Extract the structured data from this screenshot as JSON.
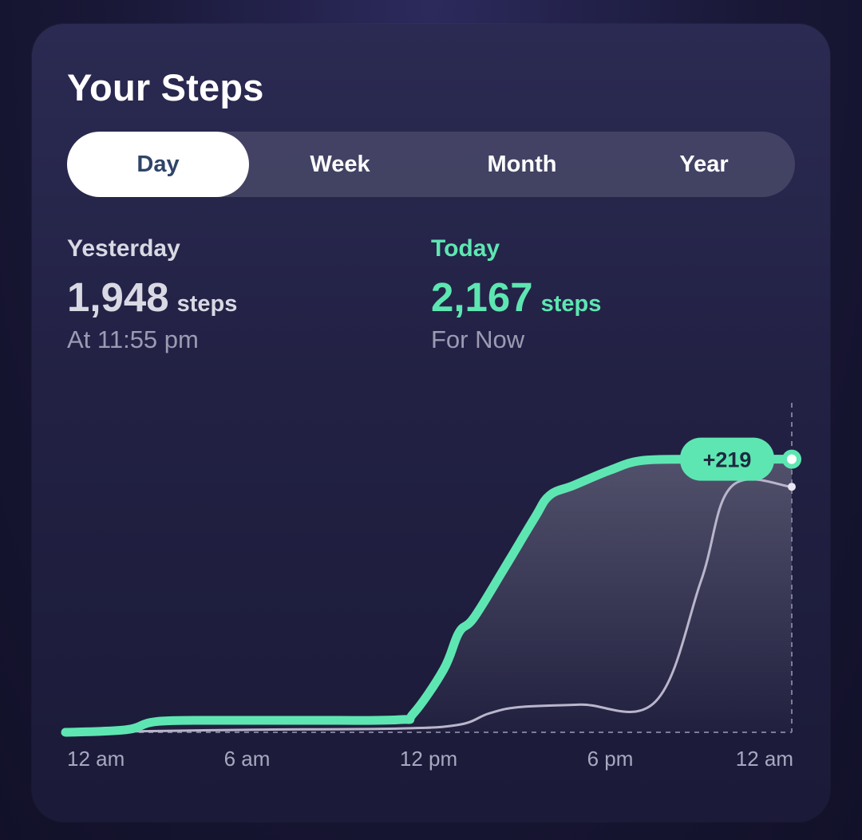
{
  "title": "Your Steps",
  "tabs": [
    {
      "label": "Day",
      "active": true
    },
    {
      "label": "Week",
      "active": false
    },
    {
      "label": "Month",
      "active": false
    },
    {
      "label": "Year",
      "active": false
    }
  ],
  "yesterday": {
    "label": "Yesterday",
    "steps": "1,948",
    "unit": "steps",
    "sub": "At 11:55 pm"
  },
  "today": {
    "label": "Today",
    "steps": "2,167",
    "unit": "steps",
    "sub": "For Now"
  },
  "colors": {
    "accent": "#5ee6b2",
    "yesterday_line": "#b9b6cc",
    "card": "#24234a",
    "active_tab_text": "#2f4468"
  },
  "chart_data": {
    "type": "line",
    "x_tick_labels": [
      "12 am",
      "6 am",
      "12 pm",
      "6 pm",
      "12 am"
    ],
    "x_unit": "hour of day",
    "x_range": [
      0,
      24
    ],
    "y_range": [
      0,
      2500
    ],
    "series": [
      {
        "name": "Today",
        "color": "#5ee6b2",
        "points": [
          [
            0,
            0
          ],
          [
            2,
            20
          ],
          [
            3,
            85
          ],
          [
            5,
            95
          ],
          [
            8,
            95
          ],
          [
            11,
            100
          ],
          [
            11.5,
            150
          ],
          [
            12.5,
            500
          ],
          [
            13,
            790
          ],
          [
            13.5,
            910
          ],
          [
            14.5,
            1300
          ],
          [
            15.5,
            1700
          ],
          [
            16,
            1880
          ],
          [
            16.8,
            1960
          ],
          [
            18,
            2080
          ],
          [
            19,
            2155
          ],
          [
            20.5,
            2167
          ]
        ]
      },
      {
        "name": "Yesterday",
        "color": "#b9b6cc",
        "points": [
          [
            0,
            0
          ],
          [
            6,
            20
          ],
          [
            11,
            30
          ],
          [
            13,
            60
          ],
          [
            14,
            150
          ],
          [
            15,
            200
          ],
          [
            17,
            220
          ],
          [
            19.5,
            245
          ],
          [
            21,
            1200
          ],
          [
            22,
            1948
          ],
          [
            24,
            1948
          ]
        ]
      }
    ],
    "annotation": "+219"
  }
}
